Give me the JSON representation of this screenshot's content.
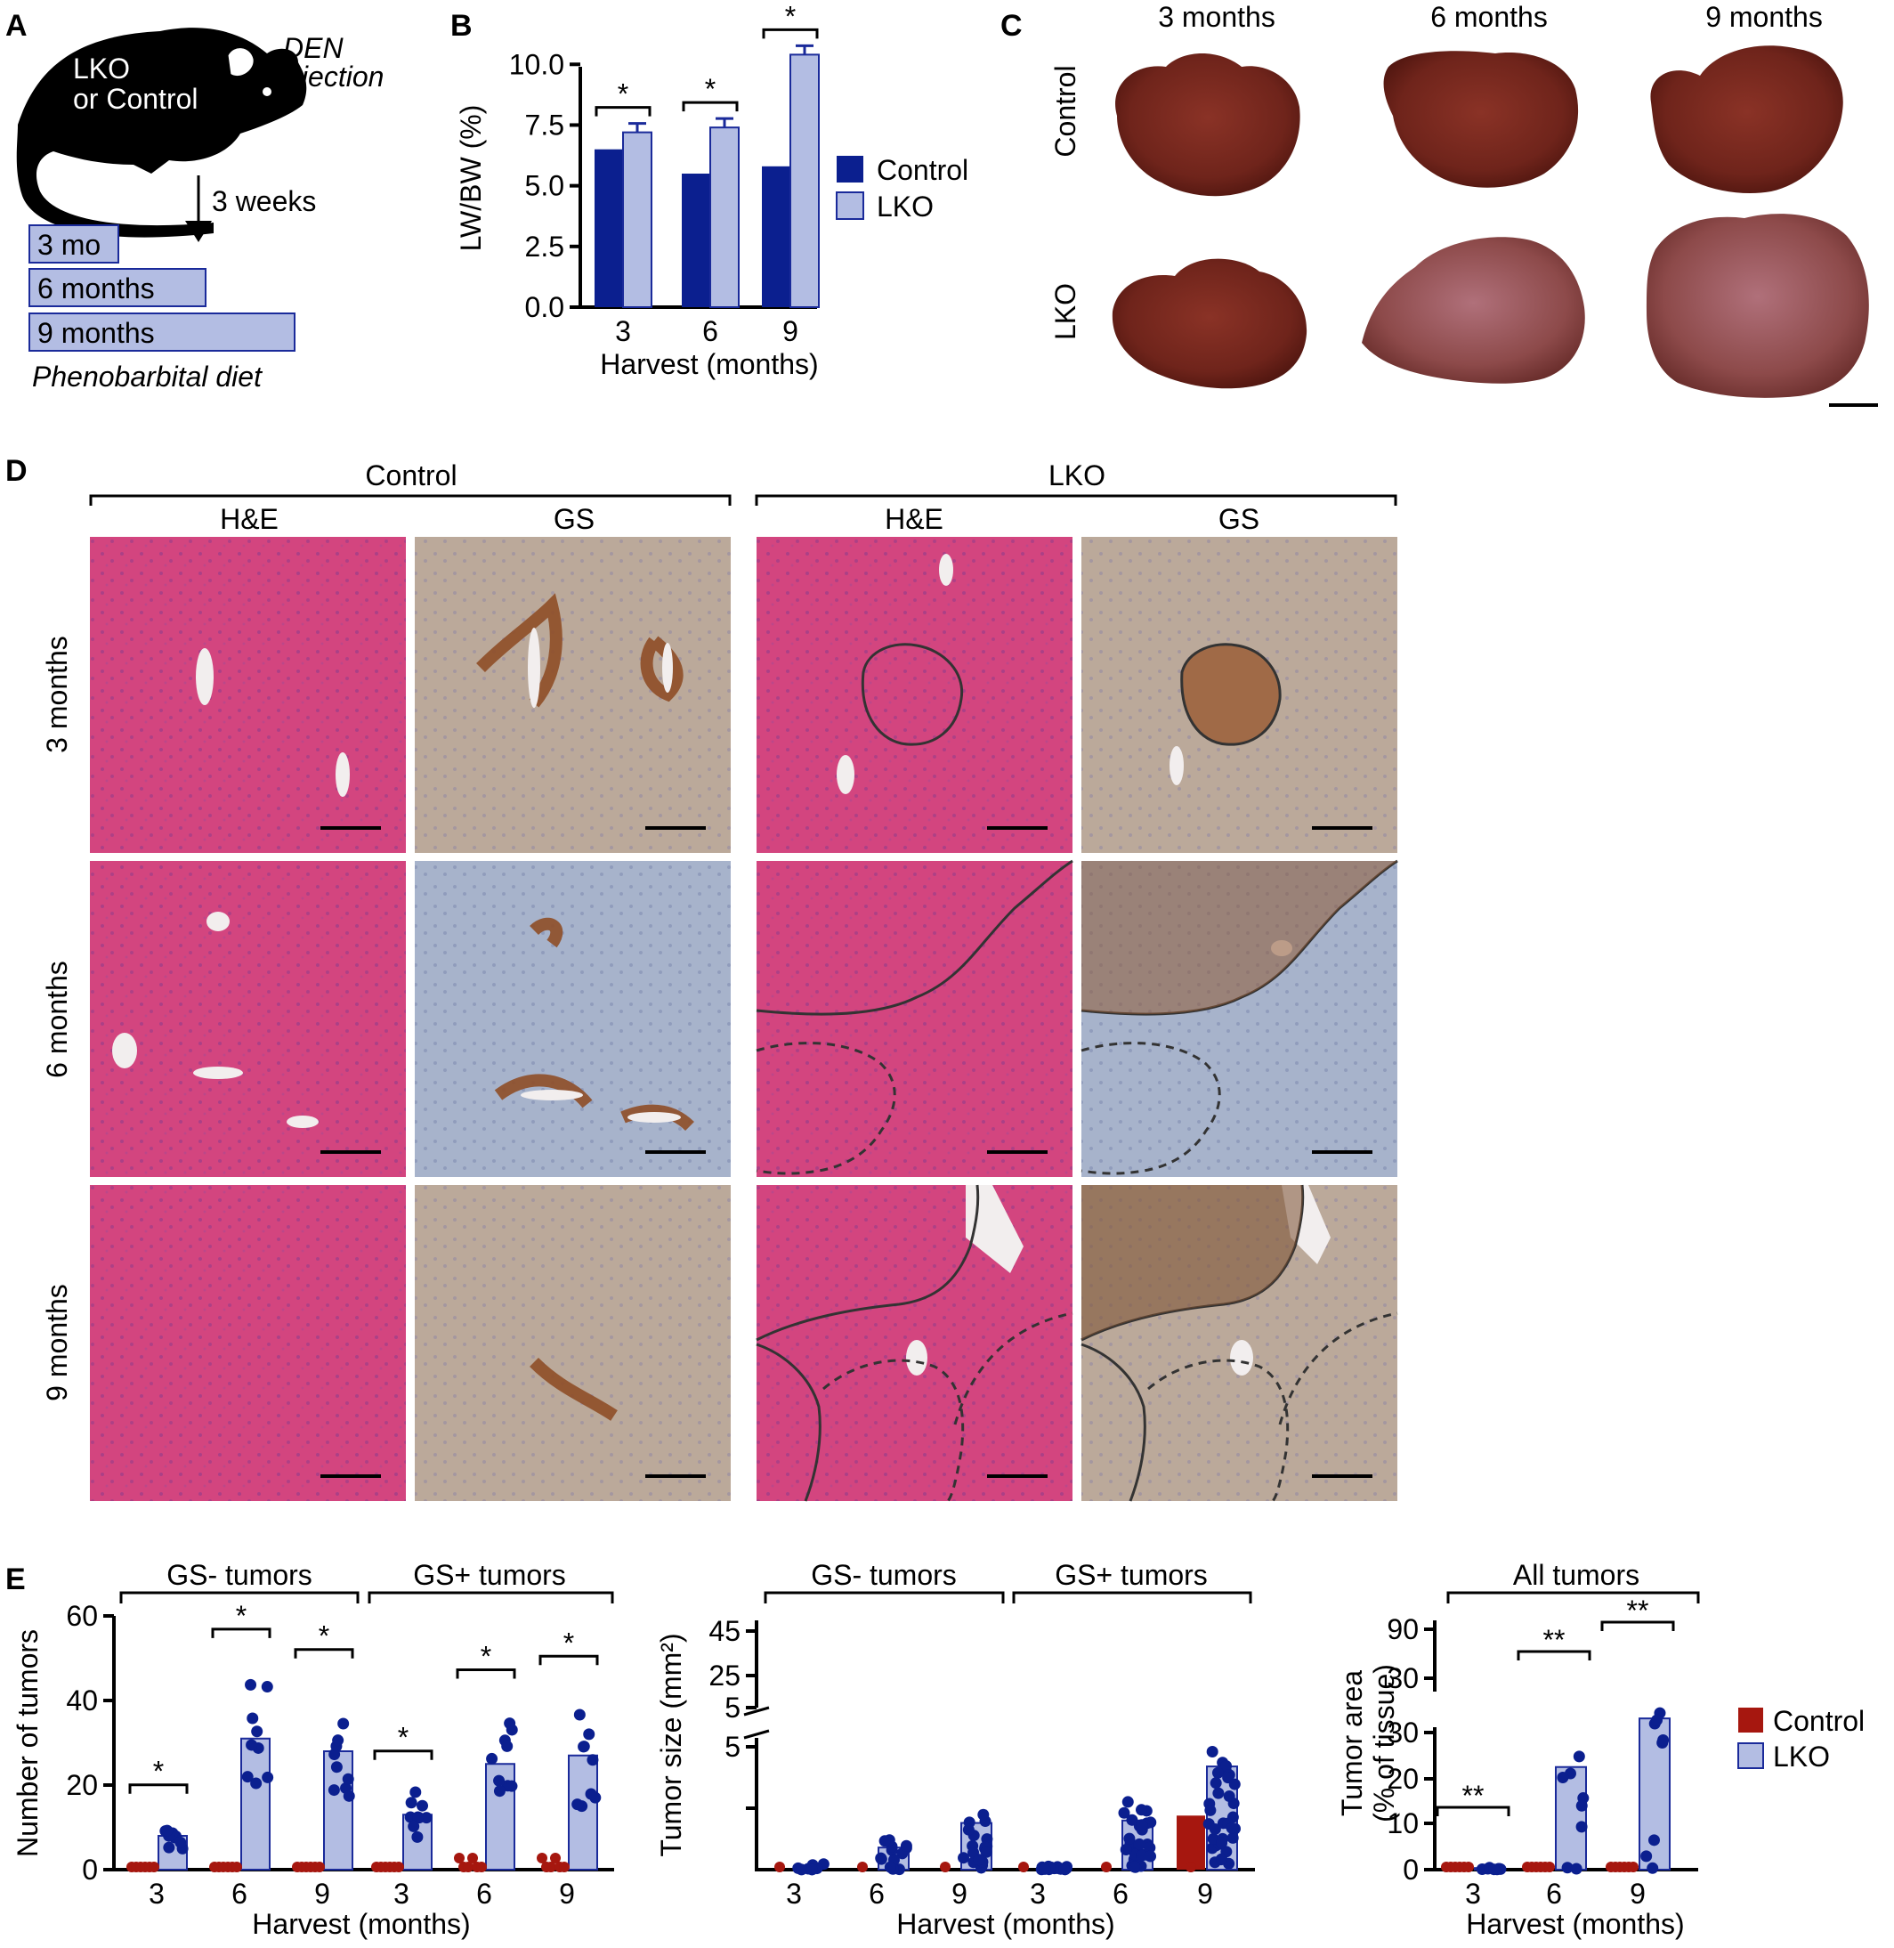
{
  "panels": {
    "A": {
      "letter": "A",
      "mouse_text": [
        "LKO",
        "or Control"
      ],
      "injection_text": [
        "DEN",
        "injection"
      ],
      "delay_text": "3 weeks",
      "bars": [
        "3 mo",
        "6 months",
        "9 months"
      ],
      "diet_text": "Phenobarbital diet"
    },
    "B": {
      "letter": "B",
      "sig": [
        "*",
        "*",
        "*"
      ]
    },
    "C": {
      "letter": "C",
      "col_labels": [
        "3 months",
        "6 months",
        "9 months"
      ],
      "row_labels": [
        "Control",
        "LKO"
      ]
    },
    "D": {
      "letter": "D",
      "group_labels": [
        "Control",
        "LKO"
      ],
      "stain_labels": [
        "H&E",
        "GS",
        "H&E",
        "GS"
      ],
      "row_labels": [
        "3 months",
        "6 months",
        "9 months"
      ]
    },
    "E": {
      "letter": "E",
      "chart1_groups": [
        "GS- tumors",
        "GS+ tumors"
      ],
      "chart2_groups": [
        "GS- tumors",
        "GS+ tumors"
      ],
      "chart3_groups": [
        "All tumors"
      ],
      "sig1": [
        "*",
        "*",
        "*",
        "*",
        "*",
        "*"
      ],
      "sig3": [
        "**",
        "**",
        "**"
      ],
      "legend": [
        "Control",
        "LKO"
      ]
    }
  },
  "colors": {
    "control_dark": "#0b1f8f",
    "lko_light": "#b3bde3",
    "control_red": "#a6170f",
    "he_pink": "#d4427e",
    "gs_brown": "#9a5a2e",
    "liver": "#7a2a20"
  },
  "chart_data": [
    {
      "id": "B",
      "type": "bar",
      "categories": [
        "3",
        "6",
        "9"
      ],
      "series": [
        {
          "name": "Control",
          "values": [
            6.5,
            5.5,
            5.8
          ]
        },
        {
          "name": "LKO",
          "values": [
            7.2,
            7.4,
            10.4
          ]
        }
      ],
      "xlabel": "Harvest (months)",
      "ylabel": "LW/BW (%)",
      "ylim": [
        0,
        11
      ],
      "yticks": [
        "0.0",
        "2.5",
        "5.0",
        "7.5",
        "10.0"
      ],
      "legend": "right"
    },
    {
      "id": "E1",
      "type": "bar",
      "categories": [
        "3",
        "6",
        "9",
        "3",
        "6",
        "9"
      ],
      "series": [
        {
          "name": "Control",
          "values": [
            0,
            0,
            0,
            0,
            1,
            1
          ]
        },
        {
          "name": "LKO",
          "values": [
            8,
            31,
            28,
            13,
            25,
            27
          ]
        }
      ],
      "xlabel": "Harvest (months)",
      "ylabel": "Number of tumors",
      "ylim": [
        0,
        60
      ],
      "yticks": [
        "0",
        "20",
        "40",
        "60"
      ]
    },
    {
      "id": "E2",
      "type": "scatter",
      "categories": [
        "3",
        "6",
        "9",
        "3",
        "6",
        "9"
      ],
      "series": [
        {
          "name": "Control",
          "values": [
            0,
            0.1,
            0,
            0,
            0.1,
            2.2
          ]
        },
        {
          "name": "LKO",
          "values": [
            0.2,
            0.9,
            1.9,
            0.1,
            2.0,
            4.2
          ]
        }
      ],
      "xlabel": "Harvest (months)",
      "ylabel": "Tumor size (mm²)",
      "yticks": [
        "5",
        "5",
        "25",
        "45"
      ]
    },
    {
      "id": "E3",
      "type": "bar",
      "categories": [
        "3",
        "6",
        "9"
      ],
      "series": [
        {
          "name": "Control",
          "values": [
            0,
            0,
            0.3
          ]
        },
        {
          "name": "LKO",
          "values": [
            0.3,
            19,
            28
          ]
        }
      ],
      "xlabel": "Harvest (months)",
      "ylabel_lines": [
        "Tumor area",
        "(% of tissue)"
      ],
      "yticks": [
        "0",
        "10",
        "20",
        "30",
        "30",
        "90"
      ]
    }
  ]
}
